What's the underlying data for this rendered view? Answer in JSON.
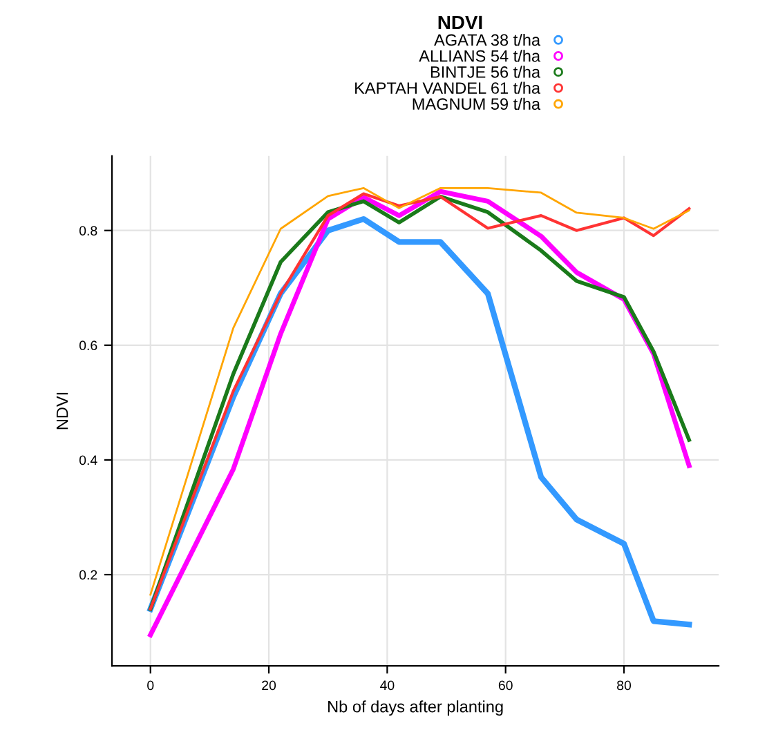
{
  "chart_data": {
    "type": "line",
    "legend_title": "NDVI",
    "xlabel": "Nb of days after planting",
    "ylabel": "NDVI",
    "x": [
      0,
      14,
      22,
      30,
      36,
      42,
      49,
      57,
      66,
      72,
      80,
      85,
      91
    ],
    "series": [
      {
        "name": "AGATA 38 t/ha",
        "color": "#3399ff",
        "values": [
          0.14,
          0.51,
          0.69,
          0.8,
          0.82,
          0.78,
          0.78,
          0.69,
          0.37,
          0.296,
          0.254,
          0.119,
          0.113
        ]
      },
      {
        "name": "ALLIANS 54 t/ha",
        "color": "#ff00ff",
        "values": [
          0.095,
          0.384,
          0.62,
          0.82,
          0.858,
          0.826,
          0.868,
          0.851,
          0.79,
          0.727,
          0.68,
          0.585,
          0.39
        ]
      },
      {
        "name": "BINTJE 56 t/ha",
        "color": "#1a7a1a",
        "values": [
          0.14,
          0.55,
          0.745,
          0.832,
          0.851,
          0.814,
          0.859,
          0.832,
          0.765,
          0.712,
          0.684,
          0.589,
          0.435
        ]
      },
      {
        "name": "KAPTAH VANDEL 61 t/ha",
        "color": "#ff3333",
        "values": [
          0.14,
          0.52,
          0.69,
          0.826,
          0.864,
          0.843,
          0.859,
          0.804,
          0.826,
          0.8,
          0.822,
          0.791,
          0.838
        ]
      },
      {
        "name": "MAGNUM 59 t/ha",
        "color": "#ffa500",
        "values": [
          0.165,
          0.63,
          0.803,
          0.86,
          0.874,
          0.839,
          0.874,
          0.874,
          0.866,
          0.831,
          0.822,
          0.803,
          0.835
        ]
      }
    ],
    "xlim": [
      -6.5,
      96
    ],
    "ylim": [
      0.041,
      0.93
    ],
    "xticks": [
      0,
      20,
      40,
      60,
      80
    ],
    "yticks": [
      0.2,
      0.4,
      0.6,
      0.8
    ],
    "grid": true,
    "legend": "top",
    "marker": "none",
    "line_style": "solid"
  }
}
